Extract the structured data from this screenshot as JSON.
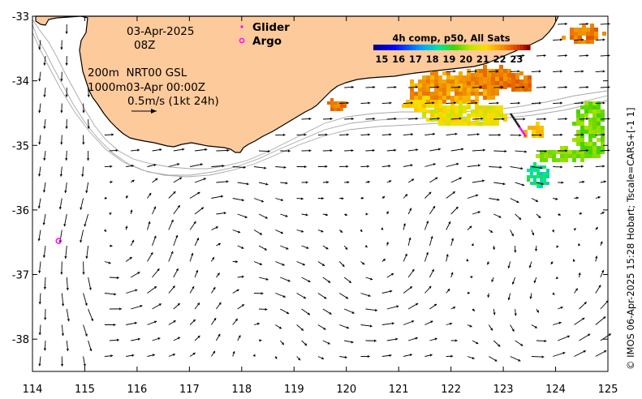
{
  "map": {
    "region": "South-west Western Australia",
    "lon_range": [
      114,
      125
    ],
    "lat_range": [
      -38.5,
      -33
    ],
    "x_ticks": [
      "114",
      "115",
      "116",
      "117",
      "118",
      "119",
      "120",
      "121",
      "122",
      "123",
      "124",
      "125"
    ],
    "y_ticks": [
      "-33",
      "-34",
      "-35",
      "-36",
      "-37",
      "-38"
    ]
  },
  "date": {
    "line1": "03-Apr-2025",
    "line2": "08Z"
  },
  "contours": {
    "line1": "200m  NRT00 GSL",
    "line2": "1000m03-Apr 00:00Z"
  },
  "scale": {
    "label": "0.5m/s (1kt 24h)"
  },
  "legend": {
    "glider_label": "Glider",
    "argo_label": "Argo",
    "glider_color": "#ff00ff",
    "argo_color": "#ff00ff"
  },
  "colorbar": {
    "title": "4h comp, p50, All Sats",
    "ticks": [
      "15",
      "16",
      "17",
      "18",
      "19",
      "20",
      "21",
      "22",
      "23"
    ],
    "range": [
      14.5,
      23.8
    ]
  },
  "credit": "© IMOS 06-Apr-2025 15:28 Hobart; Tscale=CARS+[-1 1]",
  "colors": {
    "land": "#fdca9c",
    "ocean": "#ffffff",
    "arrows": "#000000",
    "bathymetry": "#a8a8a8"
  },
  "argo_float": {
    "lon": 114.5,
    "lat": -36.48
  },
  "glider_track": {
    "start": [
      123.15,
      -34.52
    ],
    "end": [
      123.42,
      -34.85
    ]
  }
}
